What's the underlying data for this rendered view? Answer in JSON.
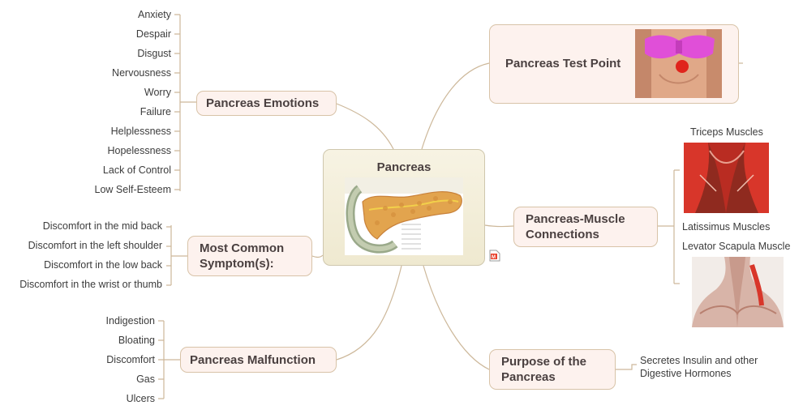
{
  "central": {
    "title": "Pancreas"
  },
  "pancreas_image": {
    "labels": [
      "",
      "",
      "",
      "",
      "",
      ""
    ]
  },
  "topics": {
    "emotions": {
      "title": "Pancreas Emotions",
      "items": [
        "Anxiety",
        "Despair",
        "Disgust",
        "Nervousness",
        "Worry",
        "Failure",
        "Helplessness",
        "Hopelessness",
        "Lack of Control",
        "Low Self-Esteem"
      ]
    },
    "symptoms": {
      "title": "Most Common Symptom(s):",
      "items": [
        "Discomfort in the mid back",
        "Discomfort in the left shoulder",
        "Discomfort in the low back",
        "Discomfort in the wrist or thumb"
      ]
    },
    "malfunction": {
      "title": "Pancreas Malfunction",
      "items": [
        "Indigestion",
        "Bloating",
        "Discomfort",
        "Gas",
        "Ulcers"
      ]
    },
    "test_point": {
      "title": "Pancreas Test Point"
    },
    "muscle": {
      "title": "Pancreas-Muscle Connections",
      "items": [
        "Triceps Muscles",
        "Latissimus Muscles",
        "Levator Scapula Muscle"
      ]
    },
    "purpose": {
      "title": "Purpose of the Pancreas",
      "items": [
        "Secretes Insulin and other Digestive Hormones"
      ]
    }
  },
  "colors": {
    "connector": "#cdb89a",
    "node_fill": "#fdf2ee",
    "node_border": "#d8c3a8",
    "central_fill": "#f3eed9",
    "muscle_red": "#d8362a",
    "bikini": "#e04fd8",
    "test_dot": "#e0241c"
  },
  "icons": [
    "pancreas-illustration",
    "torso-photo-icon",
    "triceps-muscle-image",
    "levator-scapula-image",
    "mindmap-file-icon"
  ]
}
